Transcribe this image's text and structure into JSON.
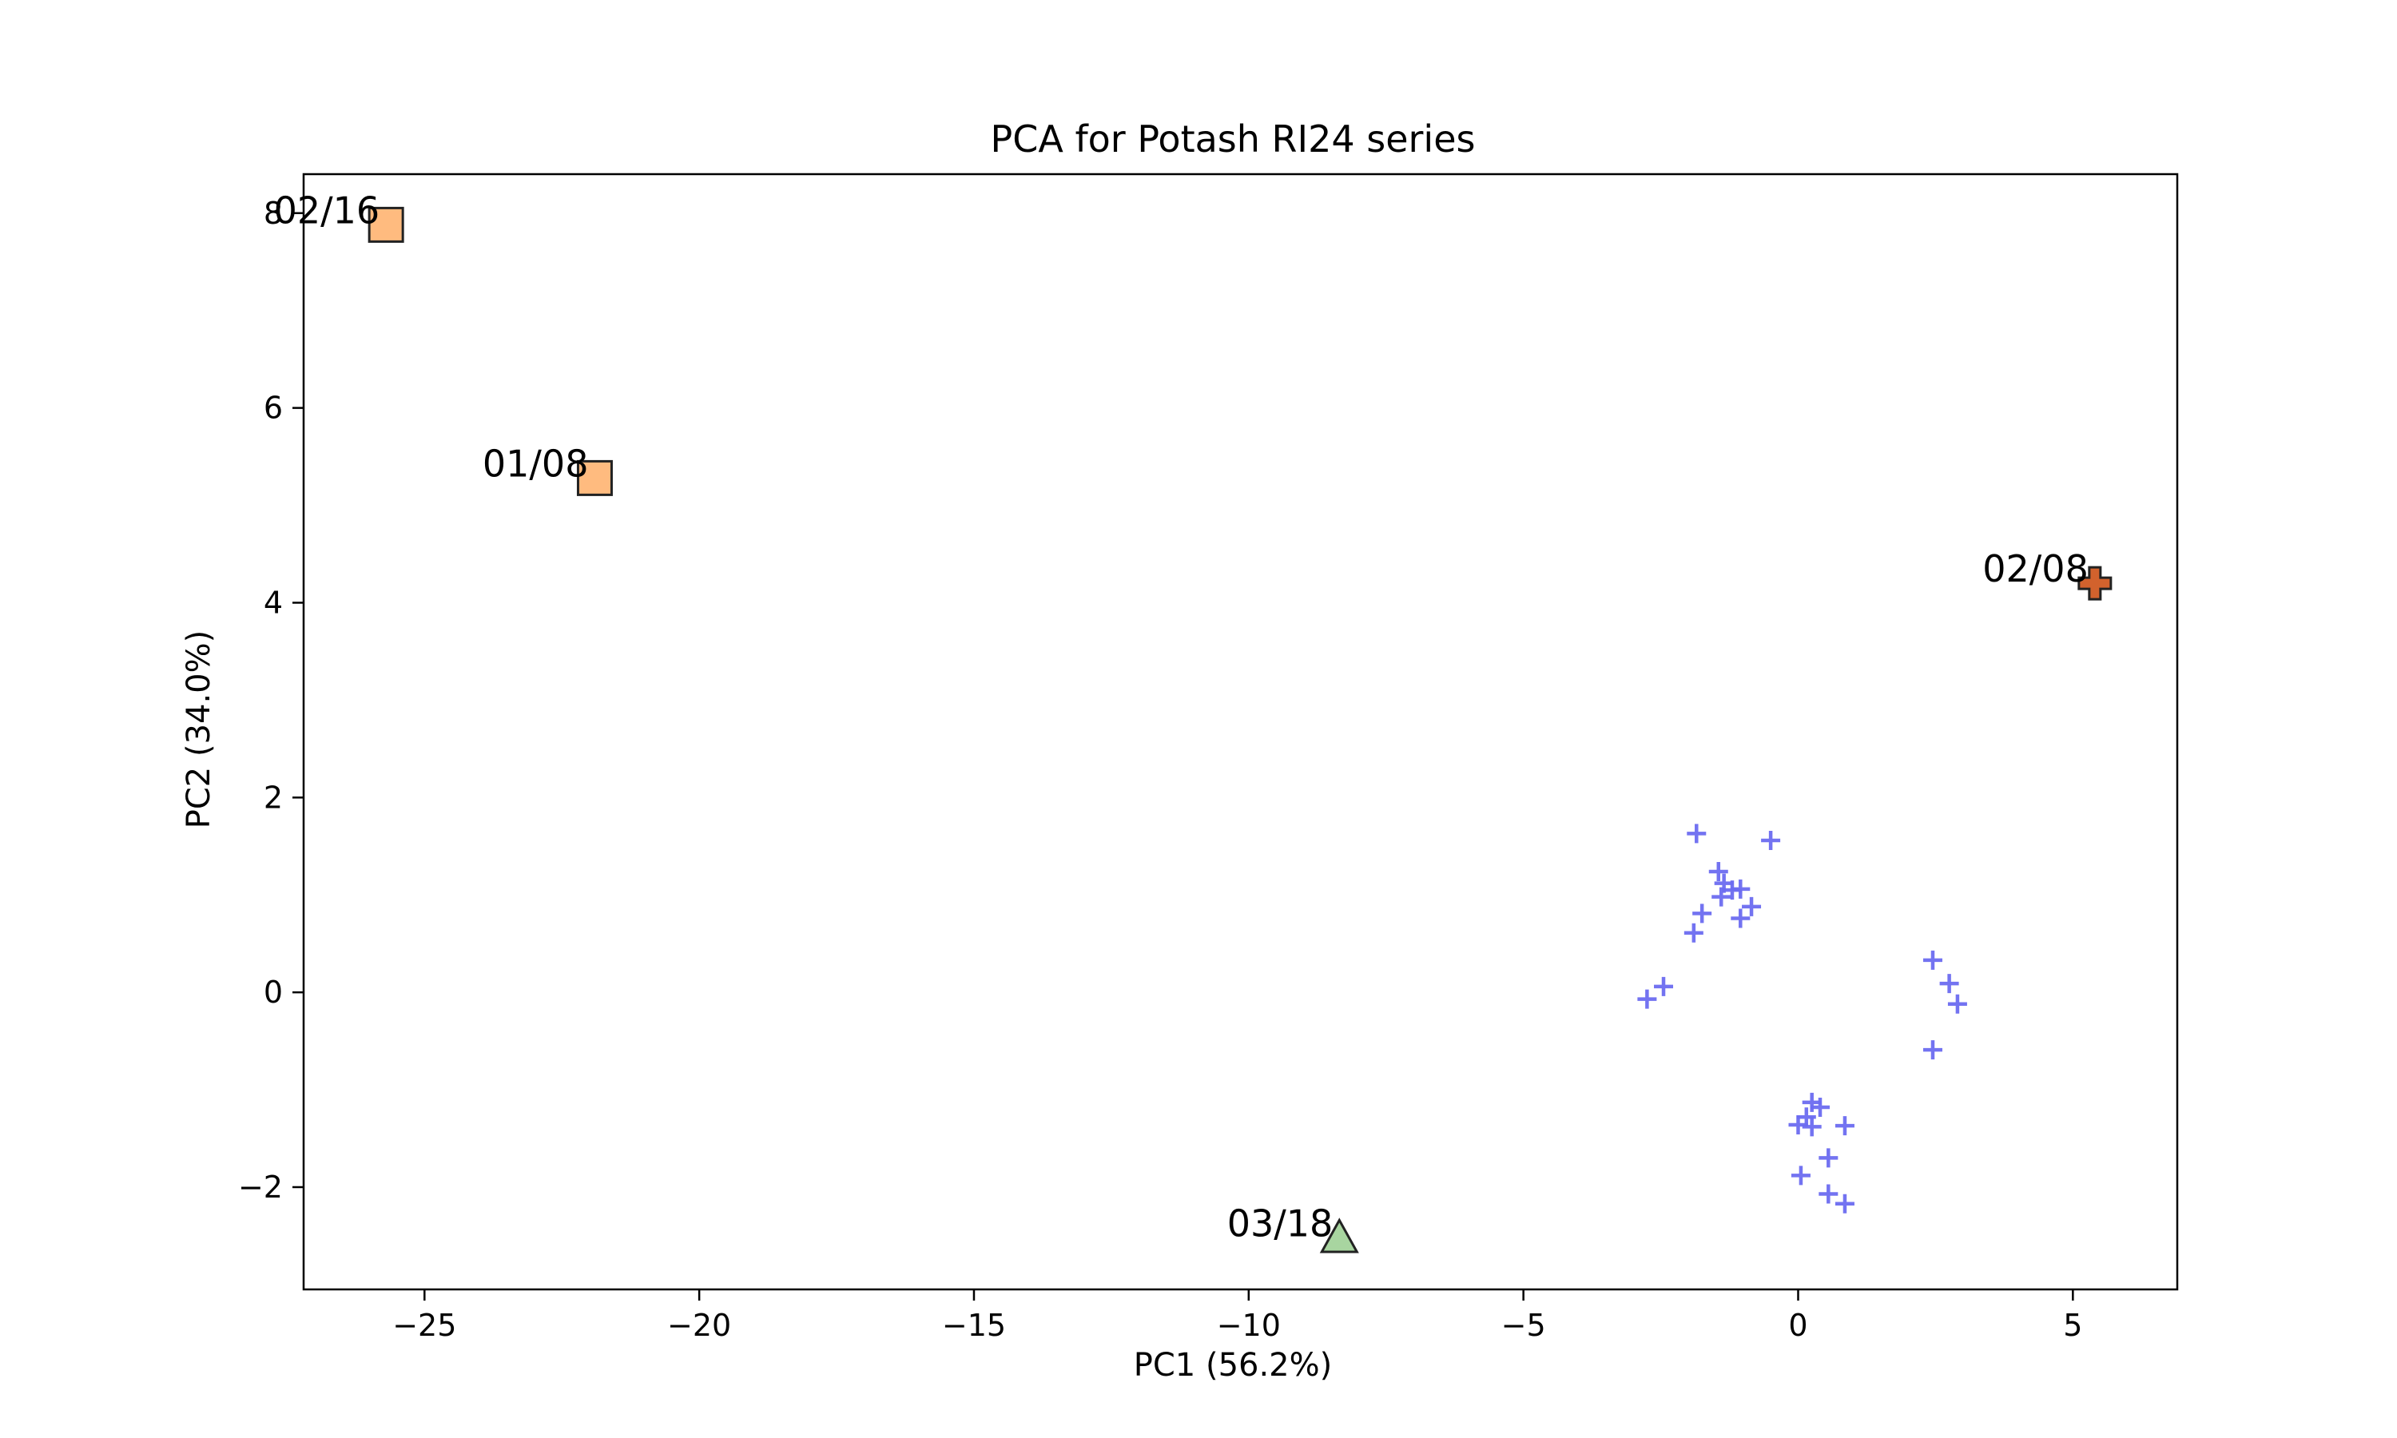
{
  "chart_data": {
    "type": "scatter",
    "title": "PCA for Potash RI24 series",
    "xlabel": "PC1 (56.2%)",
    "ylabel": "PC2 (34.0%)",
    "xlim": [
      -27.2,
      6.9
    ],
    "ylim": [
      -3.05,
      8.4
    ],
    "xticks": [
      -25,
      -20,
      -15,
      -10,
      -5,
      0,
      5
    ],
    "yticks": [
      -2,
      0,
      2,
      4,
      6,
      8
    ],
    "xtick_labels": [
      "−25",
      "−20",
      "−15",
      "−10",
      "−5",
      "0",
      "5"
    ],
    "ytick_labels": [
      "−2",
      "0",
      "2",
      "4",
      "6",
      "8"
    ],
    "grid": false,
    "colors": {
      "cluster": "#6b6bf0",
      "square": "#ffbb7f",
      "cross": "#d2622d",
      "triangle": "#a8d5a0",
      "edge": "#222222"
    },
    "series": [
      {
        "marker": "plus",
        "points": [
          {
            "x": -1.85,
            "y": 1.63
          },
          {
            "x": -0.5,
            "y": 1.56
          },
          {
            "x": -1.45,
            "y": 1.24
          },
          {
            "x": -1.35,
            "y": 1.12
          },
          {
            "x": -1.2,
            "y": 1.05
          },
          {
            "x": -1.05,
            "y": 1.06
          },
          {
            "x": -1.4,
            "y": 0.98
          },
          {
            "x": -0.85,
            "y": 0.88
          },
          {
            "x": -1.75,
            "y": 0.81
          },
          {
            "x": -1.05,
            "y": 0.76
          },
          {
            "x": -1.9,
            "y": 0.61
          },
          {
            "x": -2.45,
            "y": 0.06
          },
          {
            "x": -2.75,
            "y": -0.07
          },
          {
            "x": 2.45,
            "y": 0.33
          },
          {
            "x": 2.75,
            "y": 0.09
          },
          {
            "x": 2.9,
            "y": -0.12
          },
          {
            "x": 2.45,
            "y": -0.59
          },
          {
            "x": 0.25,
            "y": -1.13
          },
          {
            "x": 0.4,
            "y": -1.18
          },
          {
            "x": 0.15,
            "y": -1.28
          },
          {
            "x": 0.0,
            "y": -1.36
          },
          {
            "x": 0.25,
            "y": -1.38
          },
          {
            "x": 0.85,
            "y": -1.37
          },
          {
            "x": 0.55,
            "y": -1.7
          },
          {
            "x": 0.05,
            "y": -1.88
          },
          {
            "x": 0.55,
            "y": -2.07
          },
          {
            "x": 0.85,
            "y": -2.17
          }
        ]
      },
      {
        "marker": "square",
        "points": [
          {
            "x": -25.7,
            "y": 7.88,
            "label": "02/16"
          },
          {
            "x": -21.9,
            "y": 5.28,
            "label": "01/08"
          }
        ]
      },
      {
        "marker": "cross",
        "points": [
          {
            "x": 5.4,
            "y": 4.2,
            "label": "02/08"
          }
        ]
      },
      {
        "marker": "triangle",
        "points": [
          {
            "x": -8.35,
            "y": -2.52,
            "label": "03/18"
          }
        ]
      }
    ]
  }
}
